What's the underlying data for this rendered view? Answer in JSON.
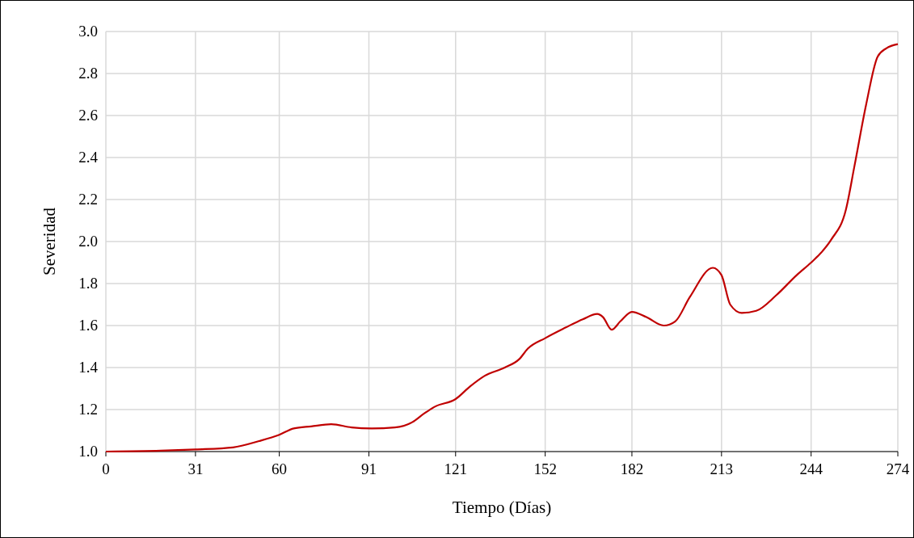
{
  "chart_data": {
    "type": "line",
    "xlabel": "Tiempo (Días)",
    "ylabel": "Severidad",
    "x": [
      0,
      19,
      31,
      44,
      53,
      60,
      65,
      71,
      78,
      85,
      92,
      100,
      106,
      110,
      114,
      121,
      126,
      131,
      138,
      143,
      146,
      152,
      159,
      165,
      170,
      172,
      175,
      178,
      182,
      187,
      193,
      197,
      202,
      210,
      213,
      216,
      220,
      225,
      232,
      239,
      244,
      247,
      251,
      256,
      259,
      263,
      267,
      270,
      274
    ],
    "series": [
      {
        "color": "#c00000",
        "values": [
          1.0,
          1.004,
          1.01,
          1.02,
          1.05,
          1.08,
          1.11,
          1.12,
          1.13,
          1.115,
          1.11,
          1.115,
          1.14,
          1.18,
          1.215,
          1.25,
          1.31,
          1.36,
          1.4,
          1.44,
          1.49,
          1.54,
          1.59,
          1.63,
          1.655,
          1.64,
          1.58,
          1.62,
          1.665,
          1.64,
          1.6,
          1.62,
          1.735,
          1.875,
          1.84,
          1.7,
          1.66,
          1.67,
          1.745,
          1.84,
          1.9,
          1.94,
          2.01,
          2.15,
          2.36,
          2.65,
          2.88,
          2.92,
          2.94
        ]
      }
    ],
    "xlim": [
      0,
      274
    ],
    "xticks": [
      0,
      31,
      60,
      91,
      121,
      152,
      182,
      213,
      244,
      274
    ],
    "ylim": [
      1.0,
      3.0
    ],
    "yticks": [
      {
        "value": 1.0,
        "label": "1.0"
      },
      {
        "value": 1.2,
        "label": "1.2"
      },
      {
        "value": 1.4,
        "label": "1.4"
      },
      {
        "value": 1.6,
        "label": "1.6"
      },
      {
        "value": 1.8,
        "label": "1.8"
      },
      {
        "value": 2.0,
        "label": "2.0"
      },
      {
        "value": 2.2,
        "label": "2.2"
      },
      {
        "value": 2.4,
        "label": "2.4"
      },
      {
        "value": 2.6,
        "label": "2.6"
      },
      {
        "value": 2.8,
        "label": "2.8"
      },
      {
        "value": 3.0,
        "label": "3.0"
      }
    ],
    "grid": true,
    "marker": "none",
    "line_style": "solid"
  }
}
